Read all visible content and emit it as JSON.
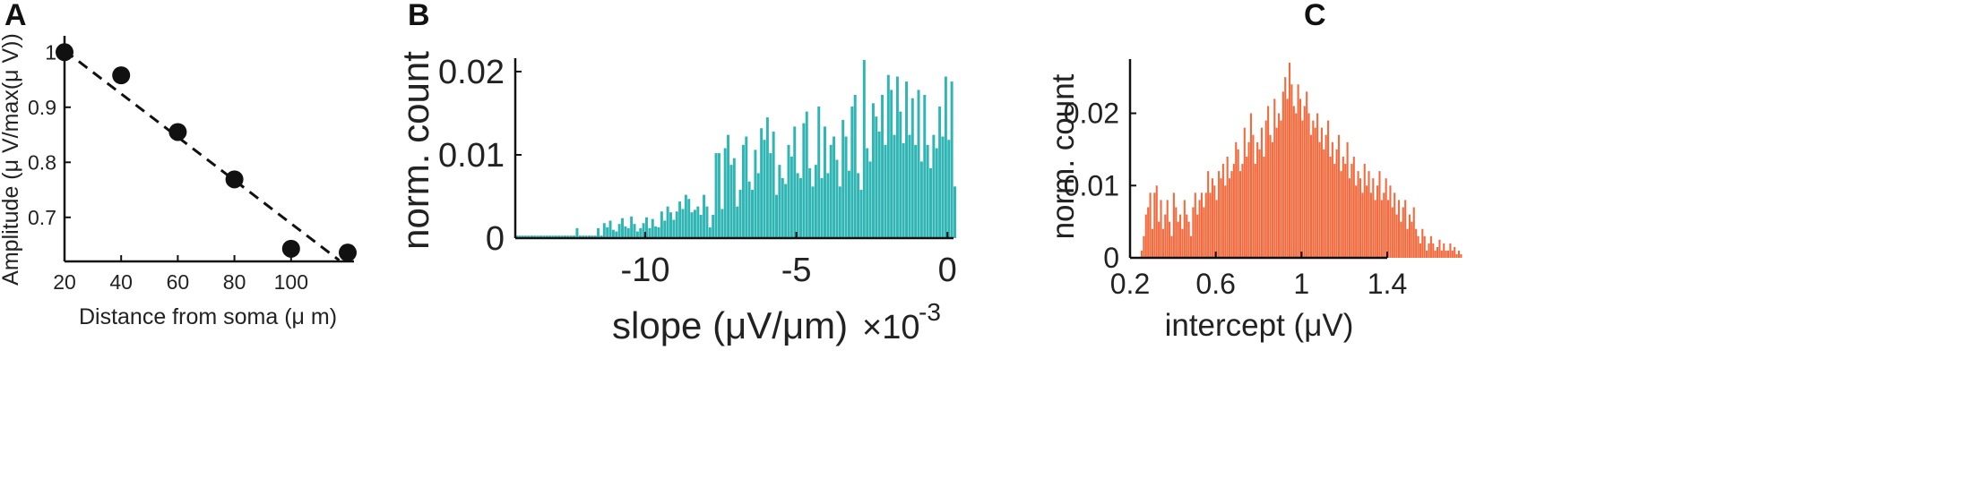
{
  "panels": {
    "A": "A",
    "B": "B",
    "C": "C"
  },
  "chart_data": [
    {
      "id": "A",
      "type": "scatter",
      "xlabel": "Distance from soma (μ m)",
      "ylabel": "Amplitude (μ V/max(μ V))",
      "xlim": [
        20,
        120
      ],
      "ylim": [
        0.62,
        1.02
      ],
      "xticks": [
        "20",
        "40",
        "60",
        "80",
        "100"
      ],
      "xtick_values": [
        20,
        40,
        60,
        80,
        100
      ],
      "yticks": [
        "0.7",
        "0.8",
        "0.9",
        "1"
      ],
      "ytick_values": [
        0.7,
        0.8,
        0.9,
        1.0
      ],
      "points": [
        {
          "x": 20,
          "y": 1.0
        },
        {
          "x": 40,
          "y": 0.958
        },
        {
          "x": 60,
          "y": 0.855
        },
        {
          "x": 80,
          "y": 0.769
        },
        {
          "x": 100,
          "y": 0.643
        },
        {
          "x": 120,
          "y": 0.636
        }
      ],
      "fit_line": {
        "x": [
          20,
          117
        ],
        "y": [
          1.003,
          0.622
        ],
        "style": "dashed"
      },
      "color": "#111111"
    },
    {
      "id": "B",
      "type": "bar",
      "subtype": "histogram",
      "xlabel": "slope (μV/μm)",
      "x_multiplier": "×10",
      "x_multiplier_exp": "-3",
      "ylabel": "norm. count",
      "xlim": [
        -14.3,
        0.2
      ],
      "ylim": [
        0,
        0.0215
      ],
      "xticks": [
        "-10",
        "-5",
        "0"
      ],
      "xtick_values": [
        -10,
        -5,
        0
      ],
      "yticks": [
        "0",
        "0.01",
        "0.02"
      ],
      "ytick_values": [
        0,
        0.01,
        0.02
      ],
      "bin_start": -14.3,
      "bin_width": 0.1,
      "values": [
        0.0003,
        0.0003,
        0.0003,
        0.0003,
        0.0003,
        0.0003,
        0.0003,
        0.0003,
        0.0003,
        0.0003,
        0.0003,
        0.0003,
        0.0003,
        0.0003,
        0.0003,
        0.0003,
        0.0003,
        0.0003,
        0.0003,
        0.0003,
        0.0012,
        0.0003,
        0.0003,
        0.0003,
        0.0003,
        0.0003,
        0.0003,
        0.0012,
        0.0003,
        0.0018,
        0.0013,
        0.0021,
        0.001,
        0.0008,
        0.0017,
        0.0024,
        0.0014,
        0.0012,
        0.0026,
        0.0017,
        0.0008,
        0.0012,
        0.0018,
        0.0025,
        0.0012,
        0.0023,
        0.0014,
        0.0013,
        0.0032,
        0.0021,
        0.0038,
        0.0031,
        0.0022,
        0.0032,
        0.0044,
        0.0035,
        0.0052,
        0.0047,
        0.0031,
        0.0034,
        0.0038,
        0.0028,
        0.0052,
        0.0038,
        0.0013,
        0.0028,
        0.0102,
        0.0102,
        0.0035,
        0.0108,
        0.0124,
        0.0088,
        0.0096,
        0.0038,
        0.0058,
        0.0112,
        0.0122,
        0.0068,
        0.0058,
        0.0106,
        0.0078,
        0.0132,
        0.0118,
        0.0145,
        0.0102,
        0.0128,
        0.0052,
        0.0088,
        0.0072,
        0.0065,
        0.0112,
        0.0098,
        0.0134,
        0.0078,
        0.0072,
        0.0138,
        0.0152,
        0.0084,
        0.0062,
        0.0088,
        0.0158,
        0.0072,
        0.0134,
        0.0078,
        0.0112,
        0.0122,
        0.0094,
        0.0062,
        0.0142,
        0.0122,
        0.0081,
        0.0158,
        0.0172,
        0.0078,
        0.0058,
        0.0214,
        0.0108,
        0.0092,
        0.0162,
        0.0146,
        0.0128,
        0.0172,
        0.0112,
        0.0196,
        0.0178,
        0.0124,
        0.0194,
        0.0152,
        0.0114,
        0.0188,
        0.0124,
        0.0168,
        0.0112,
        0.0178,
        0.0092,
        0.0172,
        0.0112,
        0.0084,
        0.0124,
        0.0108,
        0.0158,
        0.0122,
        0.0194,
        0.0118,
        0.0188,
        0.0062
      ],
      "color": "#2fb5b3"
    },
    {
      "id": "C",
      "type": "bar",
      "subtype": "histogram",
      "xlabel": "intercept (μV)",
      "ylabel": "norm. count",
      "xlim": [
        0.2,
        1.4
      ],
      "ylim": [
        0,
        0.0275
      ],
      "xticks": [
        "0.2",
        "0.6",
        "1",
        "1.4"
      ],
      "xtick_values": [
        0.2,
        0.6,
        1.0,
        1.4
      ],
      "yticks": [
        "0",
        "0.01",
        "0.02"
      ],
      "ytick_values": [
        0,
        0.01,
        0.02
      ],
      "bin_start": 0.25,
      "bin_width": 0.01,
      "values": [
        0.001,
        0.003,
        0.006,
        0.007,
        0.009,
        0.004,
        0.009,
        0.01,
        0.005,
        0.008,
        0.004,
        0.006,
        0.008,
        0.005,
        0.003,
        0.009,
        0.007,
        0.005,
        0.006,
        0.004,
        0.008,
        0.006,
        0.005,
        0.003,
        0.007,
        0.009,
        0.006,
        0.008,
        0.009,
        0.007,
        0.009,
        0.012,
        0.009,
        0.011,
        0.01,
        0.008,
        0.012,
        0.011,
        0.013,
        0.01,
        0.014,
        0.011,
        0.012,
        0.013,
        0.016,
        0.015,
        0.012,
        0.013,
        0.018,
        0.014,
        0.016,
        0.02,
        0.017,
        0.013,
        0.016,
        0.015,
        0.018,
        0.014,
        0.019,
        0.021,
        0.017,
        0.016,
        0.022,
        0.018,
        0.02,
        0.019,
        0.023,
        0.025,
        0.022,
        0.027,
        0.024,
        0.021,
        0.02,
        0.024,
        0.022,
        0.019,
        0.021,
        0.023,
        0.02,
        0.017,
        0.019,
        0.018,
        0.02,
        0.016,
        0.018,
        0.015,
        0.017,
        0.019,
        0.014,
        0.016,
        0.013,
        0.015,
        0.017,
        0.012,
        0.014,
        0.013,
        0.016,
        0.011,
        0.013,
        0.014,
        0.01,
        0.012,
        0.011,
        0.009,
        0.013,
        0.01,
        0.012,
        0.009,
        0.011,
        0.008,
        0.01,
        0.012,
        0.008,
        0.009,
        0.011,
        0.008,
        0.01,
        0.007,
        0.009,
        0.006,
        0.008,
        0.005,
        0.007,
        0.008,
        0.004,
        0.006,
        0.005,
        0.007,
        0.004,
        0.003,
        0.002,
        0.004,
        0.003,
        0.001,
        0.002,
        0.003,
        0.002,
        0.001,
        0.0015,
        0.0025,
        0.001,
        0.002,
        0.001,
        0.001,
        0.002,
        0.001,
        0.0015,
        0.0005,
        0.001,
        0.0005
      ],
      "color": "#f26a3d"
    }
  ]
}
